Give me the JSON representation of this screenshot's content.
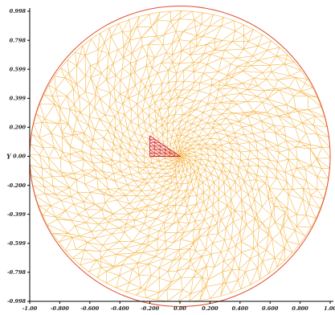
{
  "chart_data": {
    "type": "mesh",
    "title": "",
    "xlabel": "",
    "ylabel": "Y",
    "xlim": [
      -1.0,
      1.0
    ],
    "ylim": [
      -0.998,
      0.998
    ],
    "y_ticks": [
      {
        "value": 0.998,
        "label": "0.998"
      },
      {
        "value": 0.798,
        "label": "0.798"
      },
      {
        "value": 0.599,
        "label": "0.599"
      },
      {
        "value": 0.399,
        "label": "0.399"
      },
      {
        "value": 0.2,
        "label": "0.200"
      },
      {
        "value": 0.0,
        "label": "0.00"
      },
      {
        "value": -0.2,
        "label": "-0.200"
      },
      {
        "value": -0.399,
        "label": "-0.399"
      },
      {
        "value": -0.599,
        "label": "-0.599"
      },
      {
        "value": -0.798,
        "label": "-0.798"
      },
      {
        "value": -0.998,
        "label": "-0.998"
      }
    ],
    "x_ticks": [
      {
        "value": -1.0,
        "label": "-1.00"
      },
      {
        "value": -0.8,
        "label": "-0.800"
      },
      {
        "value": -0.6,
        "label": "-0.600"
      },
      {
        "value": -0.4,
        "label": "-0.400"
      },
      {
        "value": -0.2,
        "label": "-0.200"
      },
      {
        "value": 0.0,
        "label": "0.00"
      },
      {
        "value": 0.2,
        "label": "0.200"
      },
      {
        "value": 0.4,
        "label": "0.400"
      },
      {
        "value": 0.6,
        "label": "0.600"
      },
      {
        "value": 0.8,
        "label": "0.800"
      },
      {
        "value": 1.0,
        "label": "1.00"
      }
    ],
    "domain": {
      "shape": "circle",
      "center": [
        0,
        0
      ],
      "radius": 1.0
    },
    "inner_triangle": [
      [
        -0.2,
        0.14
      ],
      [
        -0.2,
        0.0
      ],
      [
        0.0,
        0.0
      ]
    ],
    "colors": {
      "boundary": "#e05030",
      "mesh": "#f5b64a",
      "inner": "#d02040",
      "axis": "#000000",
      "text": "#222222"
    },
    "grid": false,
    "legend": "none"
  }
}
